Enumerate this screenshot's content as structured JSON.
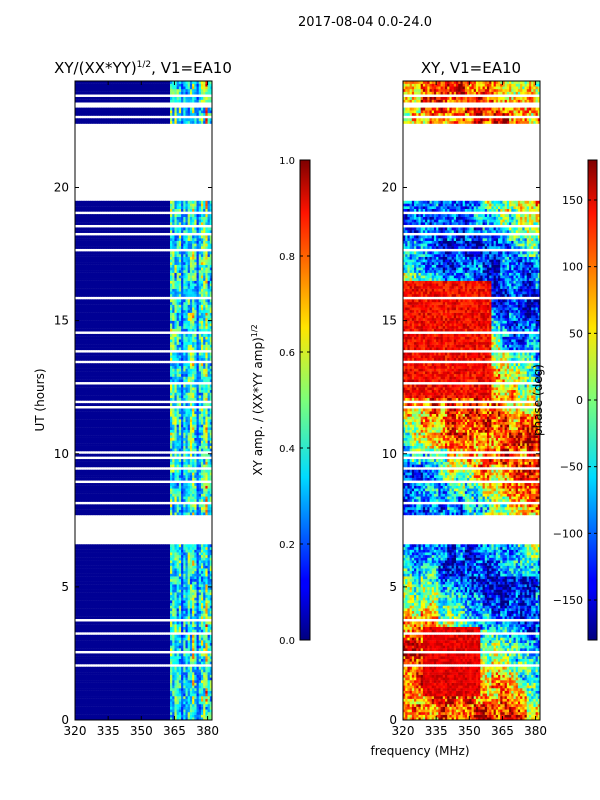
{
  "suptitle": "2017-08-04 0.0-24.0",
  "chart_data": [
    {
      "type": "heatmap",
      "title_main": "XY/(XX*YY)",
      "title_sup": "1/2",
      "title_rest": ", V1=EA10",
      "ylabel": "UT (hours)",
      "xlabel": "",
      "xlim": [
        320,
        382
      ],
      "ylim": [
        0,
        24
      ],
      "xticks": [
        320,
        335,
        350,
        365,
        380
      ],
      "yticks": [
        0,
        5,
        10,
        15,
        20
      ],
      "colorbar": {
        "label_main": "XY amp. / (XX*YY amp)",
        "label_sup": "1/2",
        "range": [
          0.0,
          1.0
        ],
        "ticks": [
          "0.0",
          "0.2",
          "0.4",
          "0.6",
          "0.8",
          "1.0"
        ],
        "tick_values": [
          0.0,
          0.2,
          0.4,
          0.6,
          0.8,
          1.0
        ],
        "colormap": "jet"
      },
      "gaps_hours": [
        [
          19.5,
          22.4
        ],
        [
          6.7,
          7.7
        ]
      ],
      "active_band_mhz": [
        363,
        382
      ]
    },
    {
      "type": "heatmap",
      "title": "XY, V1=EA10",
      "ylabel": "",
      "xlabel": "frequency (MHz)",
      "xlim": [
        320,
        382
      ],
      "ylim": [
        0,
        24
      ],
      "xticks": [
        320,
        335,
        350,
        365,
        380
      ],
      "yticks": [
        0,
        5,
        10,
        15,
        20
      ],
      "colorbar": {
        "label": "phase (deg)",
        "range": [
          -180,
          180
        ],
        "ticks": [
          "150",
          "100",
          "50",
          "0",
          "−50",
          "−100",
          "−150"
        ],
        "tick_values": [
          150,
          100,
          50,
          0,
          -50,
          -100,
          -150
        ],
        "colormap": "jet"
      },
      "gaps_hours": [
        [
          19.5,
          22.4
        ],
        [
          6.7,
          7.7
        ]
      ]
    }
  ]
}
